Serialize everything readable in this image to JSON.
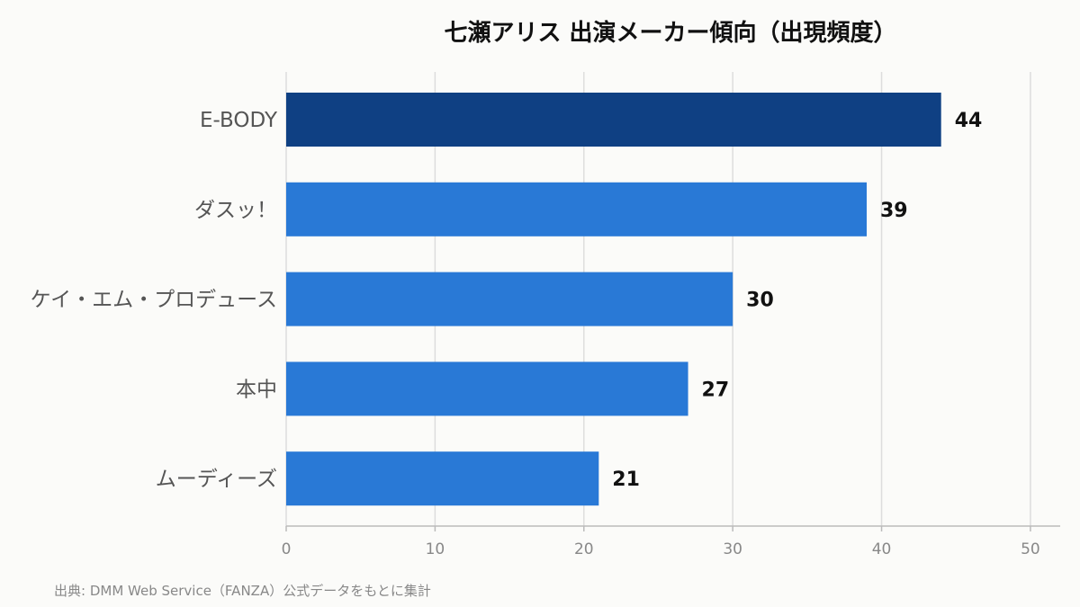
{
  "chart_data": {
    "type": "bar",
    "orientation": "horizontal",
    "title": "七瀬アリス 出演メーカー傾向（出現頻度）",
    "categories": [
      "E-BODY",
      "ダスッ！",
      "ケイ・エム・プロデュース",
      "本中",
      "ムーディーズ"
    ],
    "values": [
      44,
      39,
      30,
      27,
      21
    ],
    "xlim": [
      0,
      52
    ],
    "x_ticks": [
      0,
      10,
      20,
      30,
      40,
      50
    ],
    "grid": true,
    "legend": "none",
    "colors": {
      "highlight": "#0f4083",
      "default": "#2979d6"
    },
    "source": "出典: DMM Web Service（FANZA）公式データをもとに集計"
  }
}
